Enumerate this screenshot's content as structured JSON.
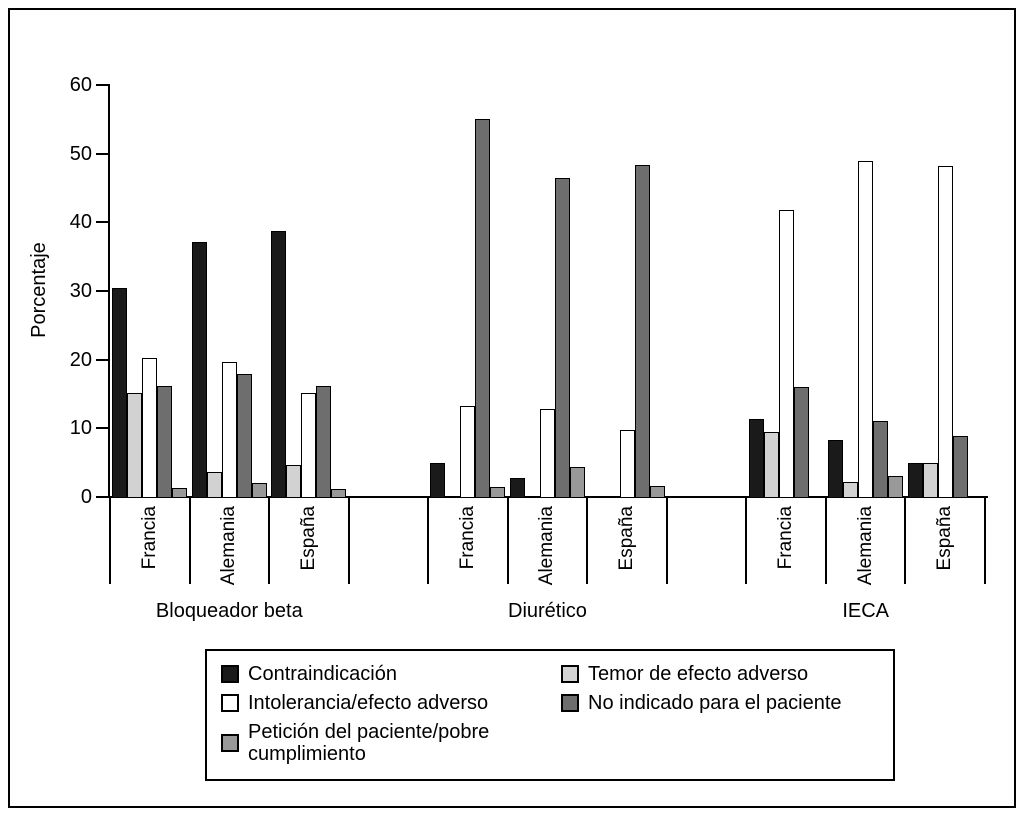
{
  "chart_data": {
    "type": "bar",
    "title": "",
    "ylabel": "Porcentaje",
    "ylim": [
      0,
      60
    ],
    "yticks": [
      0,
      10,
      20,
      30,
      40,
      50,
      60
    ],
    "grid": false,
    "legend_position": "bottom",
    "series": [
      {
        "key": "contraindicacion",
        "name": "Contraindicación",
        "color": "#1a1a1a"
      },
      {
        "key": "temor-efecto-adverso",
        "name": "Temor de efecto adverso",
        "color": "#d2d2d2"
      },
      {
        "key": "intolerancia-efecto-adverso",
        "name": "Intolerancia/efecto adverso",
        "color": "#ffffff"
      },
      {
        "key": "no-indicado",
        "name": "No indicado para el paciente",
        "color": "#6e6e6e"
      },
      {
        "key": "peticion-paciente",
        "name": "Petición del paciente/pobre cumplimiento",
        "color": "#999999"
      }
    ],
    "groups": [
      {
        "label": "Bloqueador beta",
        "categories": [
          "Francia",
          "Alemania",
          "España"
        ],
        "values": [
          [
            30.5,
            15.2,
            20.2,
            16.1,
            1.3
          ],
          [
            37.2,
            3.7,
            19.6,
            17.9,
            2.0
          ],
          [
            38.8,
            4.7,
            15.1,
            16.1,
            1.2
          ]
        ]
      },
      {
        "label": "Diurético",
        "categories": [
          "Francia",
          "Alemania",
          "España"
        ],
        "values": [
          [
            5.0,
            0,
            13.3,
            55.0,
            1.5
          ],
          [
            2.7,
            0,
            12.8,
            46.4,
            4.4
          ],
          [
            0,
            0,
            9.8,
            48.3,
            1.6
          ]
        ]
      },
      {
        "label": "IECA",
        "categories": [
          "Francia",
          "Alemania",
          "España"
        ],
        "values": [
          [
            11.4,
            9.5,
            41.8,
            16.0,
            0
          ],
          [
            8.3,
            2.2,
            49.0,
            11.0,
            3.0
          ],
          [
            5.0,
            4.9,
            48.2,
            8.9,
            0
          ]
        ]
      }
    ]
  }
}
